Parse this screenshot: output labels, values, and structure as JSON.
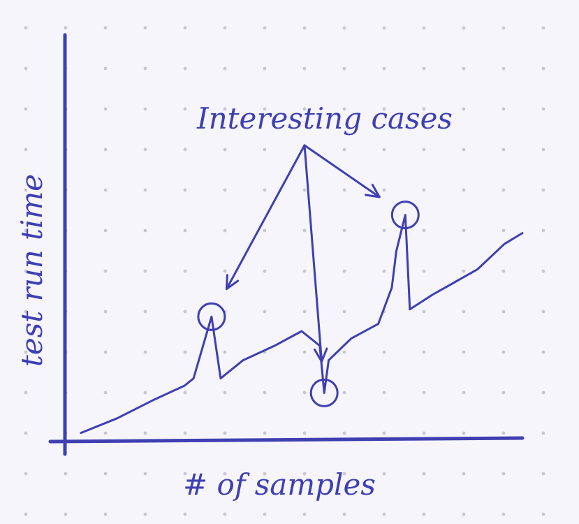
{
  "chart_data": {
    "type": "line",
    "xlabel": "# of samples",
    "ylabel": "test run time",
    "annotation": "Interesting cases",
    "xlim": [
      0,
      100
    ],
    "ylim": [
      0,
      100
    ],
    "grid": true,
    "series": [
      {
        "points": [
          [
            2,
            2
          ],
          [
            10,
            6
          ],
          [
            18,
            11
          ],
          [
            25,
            15
          ],
          [
            27,
            17
          ],
          [
            31,
            34
          ],
          [
            33,
            17
          ],
          [
            38,
            22
          ],
          [
            45,
            26
          ],
          [
            51,
            30
          ],
          [
            55,
            26
          ],
          [
            56,
            13
          ],
          [
            57,
            22
          ],
          [
            62,
            28
          ],
          [
            68,
            32
          ],
          [
            71,
            42
          ],
          [
            72,
            52
          ],
          [
            74,
            62
          ],
          [
            75,
            36
          ],
          [
            80,
            40
          ],
          [
            90,
            47
          ],
          [
            96,
            54
          ],
          [
            100,
            57
          ]
        ]
      }
    ],
    "highlighted_points": [
      {
        "x": 31,
        "y": 34
      },
      {
        "x": 56,
        "y": 13
      },
      {
        "x": 74,
        "y": 62
      }
    ]
  },
  "colors": {
    "ink": "#3f3fb2",
    "paper": "#f5f5fb",
    "dot": "#c7c7d2"
  }
}
